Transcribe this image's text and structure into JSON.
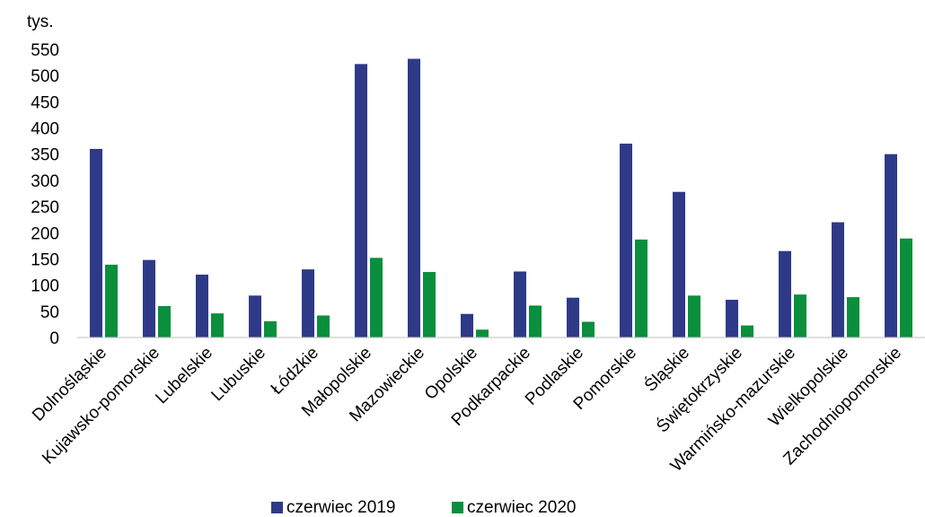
{
  "chart_data": {
    "type": "bar",
    "unit_label": "tys.",
    "categories": [
      "Dolnośląskie",
      "Kujawsko-pomorskie",
      "Lubelskie",
      "Lubuskie",
      "Łódzkie",
      "Małopolskie",
      "Mazowieckie",
      "Opolskie",
      "Podkarpackie",
      "Podlaskie",
      "Pomorskie",
      "Śląskie",
      "Świętokrzyskie",
      "Warmińsko-mazurskie",
      "Wielkopolskie",
      "Zachodniopomorskie"
    ],
    "series": [
      {
        "name": "czerwiec 2019",
        "color": "#2e3a87",
        "values": [
          360,
          148,
          120,
          80,
          130,
          522,
          532,
          45,
          126,
          76,
          370,
          278,
          72,
          165,
          220,
          350
        ]
      },
      {
        "name": "czerwiec 2020",
        "color": "#0a8f3c",
        "values": [
          139,
          60,
          46,
          31,
          42,
          152,
          125,
          15,
          61,
          30,
          187,
          80,
          23,
          82,
          77,
          189
        ]
      }
    ],
    "ylim": [
      0,
      550
    ],
    "yticks": [
      0,
      50,
      100,
      150,
      200,
      250,
      300,
      350,
      400,
      450,
      500,
      550
    ],
    "grid": false,
    "legend_position": "bottom"
  }
}
